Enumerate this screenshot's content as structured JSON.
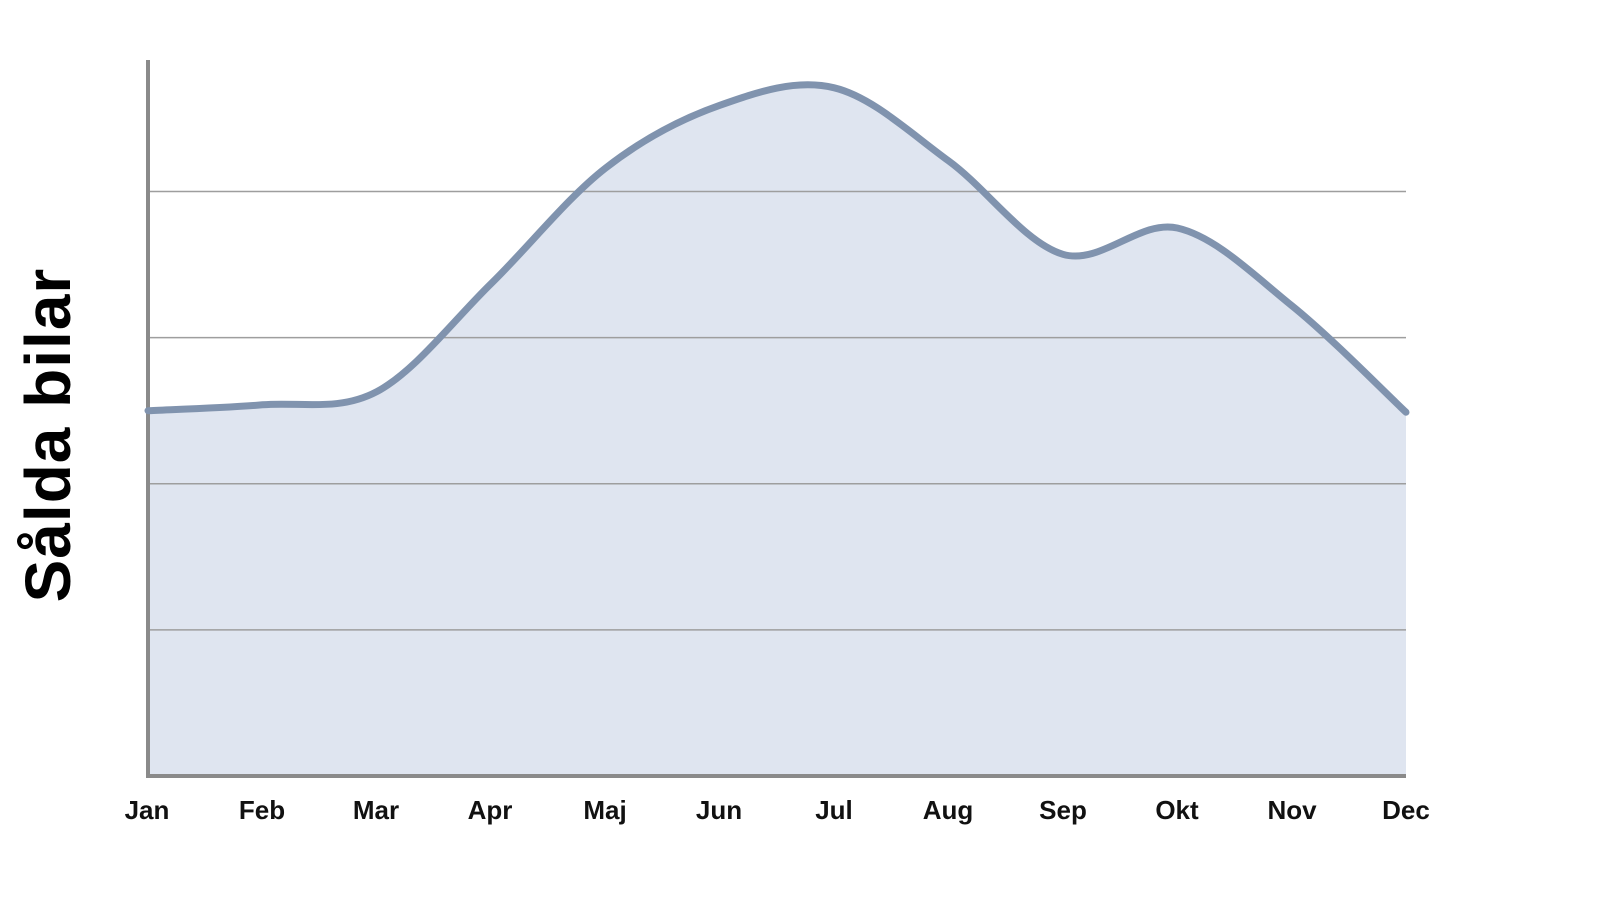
{
  "chart": {
    "colors": {
      "line": "#8093ae",
      "fill": "#dfe5f0",
      "axis": "#8a8a8a",
      "grid": "#9e9e9e",
      "label_text": "#111111"
    }
  },
  "chart_data": {
    "type": "area",
    "title": "",
    "xlabel": "",
    "ylabel": "Sålda bilar",
    "categories": [
      "Jan",
      "Feb",
      "Mar",
      "Apr",
      "Maj",
      "Jun",
      "Jul",
      "Aug",
      "Sep",
      "Okt",
      "Nov",
      "Dec"
    ],
    "values": [
      2.5,
      2.54,
      2.63,
      3.37,
      4.16,
      4.59,
      4.71,
      4.21,
      3.57,
      3.75,
      3.22,
      2.49
    ],
    "ylim": [
      0,
      4.9
    ],
    "gridlines_y": [
      1,
      2,
      3,
      4
    ],
    "y_tick_labels": "none",
    "legend": "none",
    "grid": "horizontal only",
    "note": "no numeric y-axis tick labels shown; values estimated in gridline units (1 unit = one gridline spacing), smooth spline curve with shaded area to baseline"
  }
}
